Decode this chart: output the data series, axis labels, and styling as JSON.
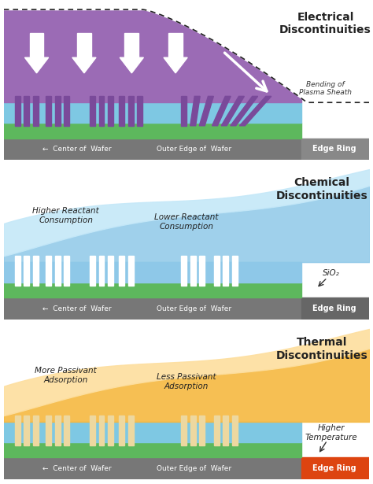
{
  "panel1": {
    "title": "Electrical\nDiscontinuities",
    "plasma_color": "#9B6BB5",
    "sky_color": "#7EC8E3",
    "wafer_color": "#5DB85D",
    "edge_ring_color": "#888888",
    "bar_color": "#777777",
    "annotation": "Bending of\nPlasma Sheath",
    "lines_color": "#7A4A9A",
    "bottom_label_left": "←  Center of  Wafer",
    "bottom_label_mid": "Outer Edge of  Wafer",
    "bottom_label_right": "Edge Ring"
  },
  "panel2": {
    "title": "Chemical\nDiscontinuities",
    "wave_color_light": "#C5E8F8",
    "wave_color_dark": "#8EC8E8",
    "wafer_color": "#5DB85D",
    "edge_ring_color": "#666666",
    "bar_color": "#777777",
    "lines_color": "#FFFFFF",
    "label_left": "Higher Reactant\nConsumption",
    "label_right": "Lower Reactant\nConsumption",
    "annotation": "SiO₂",
    "bottom_label_left": "←  Center of  Wafer",
    "bottom_label_mid": "Outer Edge of  Wafer",
    "bottom_label_right": "Edge Ring"
  },
  "panel3": {
    "title": "Thermal\nDiscontinuities",
    "wave_color_light": "#FDDFA0",
    "wave_color_dark": "#F5B840",
    "wafer_color": "#5DB85D",
    "sky_color": "#7EC8E3",
    "edge_ring_color": "#DD4410",
    "bar_color": "#777777",
    "lines_color": "#EDD8A0",
    "label_left": "More Passivant\nAdsorption",
    "label_right": "Less Passivant\nAdsorption",
    "annotation": "Higher\nTemperature",
    "bottom_label_left": "←  Center of  Wafer",
    "bottom_label_mid": "Outer Edge of  Wafer",
    "bottom_label_right": "Edge Ring"
  }
}
